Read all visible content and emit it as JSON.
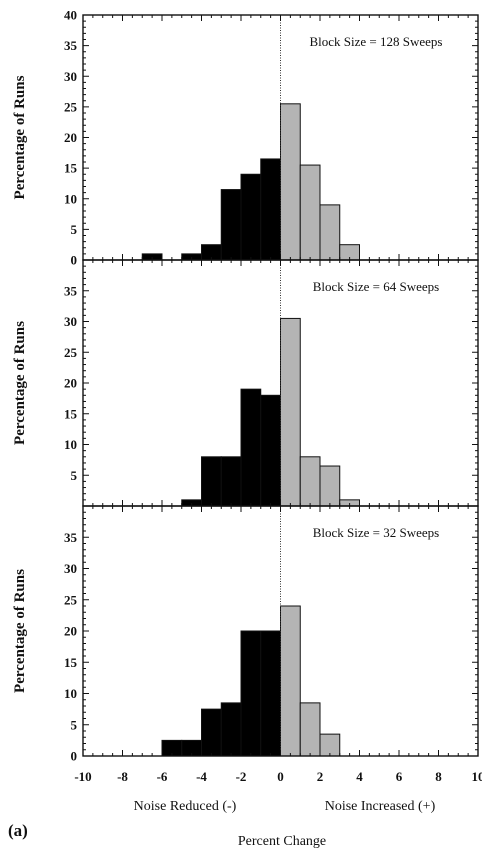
{
  "chart_data": [
    {
      "type": "bar",
      "annotation": "Block Size = 128 Sweeps",
      "ylabel": "Percentage of Runs",
      "xlim": [
        -10,
        10
      ],
      "ylim": [
        0,
        40
      ],
      "yticks": [
        0,
        5,
        10,
        15,
        20,
        25,
        30,
        35,
        40
      ],
      "bins": [
        {
          "x0": -7,
          "x1": -6,
          "value": 1,
          "side": "reduced"
        },
        {
          "x0": -5,
          "x1": -4,
          "value": 1,
          "side": "reduced"
        },
        {
          "x0": -4,
          "x1": -3,
          "value": 2.5,
          "side": "reduced"
        },
        {
          "x0": -3,
          "x1": -2,
          "value": 11.5,
          "side": "reduced"
        },
        {
          "x0": -2,
          "x1": -1,
          "value": 14,
          "side": "reduced"
        },
        {
          "x0": -1,
          "x1": 0,
          "value": 16.5,
          "side": "reduced"
        },
        {
          "x0": 0,
          "x1": 1,
          "value": 25.5,
          "side": "increased"
        },
        {
          "x0": 1,
          "x1": 2,
          "value": 15.5,
          "side": "increased"
        },
        {
          "x0": 2,
          "x1": 3,
          "value": 9,
          "side": "increased"
        },
        {
          "x0": 3,
          "x1": 4,
          "value": 2.5,
          "side": "increased"
        }
      ]
    },
    {
      "type": "bar",
      "annotation": "Block Size = 64 Sweeps",
      "ylabel": "Percentage of Runs",
      "xlim": [
        -10,
        10
      ],
      "ylim": [
        0,
        40
      ],
      "yticks": [
        5,
        10,
        15,
        20,
        25,
        30,
        35
      ],
      "bins": [
        {
          "x0": -5,
          "x1": -4,
          "value": 1,
          "side": "reduced"
        },
        {
          "x0": -4,
          "x1": -3,
          "value": 8,
          "side": "reduced"
        },
        {
          "x0": -3,
          "x1": -2,
          "value": 8,
          "side": "reduced"
        },
        {
          "x0": -2,
          "x1": -1,
          "value": 19,
          "side": "reduced"
        },
        {
          "x0": -1,
          "x1": 0,
          "value": 18,
          "side": "reduced"
        },
        {
          "x0": 0,
          "x1": 1,
          "value": 30.5,
          "side": "increased"
        },
        {
          "x0": 1,
          "x1": 2,
          "value": 8,
          "side": "increased"
        },
        {
          "x0": 2,
          "x1": 3,
          "value": 6.5,
          "side": "increased"
        },
        {
          "x0": 3,
          "x1": 4,
          "value": 1,
          "side": "increased"
        }
      ]
    },
    {
      "type": "bar",
      "annotation": "Block Size = 32 Sweeps",
      "ylabel": "Percentage of Runs",
      "xlabel": "Percent Change",
      "xlim": [
        -10,
        10
      ],
      "ylim": [
        0,
        40
      ],
      "yticks": [
        0,
        5,
        10,
        15,
        20,
        25,
        30,
        35
      ],
      "xticks": [
        -10,
        -8,
        -6,
        -4,
        -2,
        0,
        2,
        4,
        6,
        8,
        10
      ],
      "bins": [
        {
          "x0": -6,
          "x1": -5,
          "value": 2.5,
          "side": "reduced"
        },
        {
          "x0": -5,
          "x1": -4,
          "value": 2.5,
          "side": "reduced"
        },
        {
          "x0": -4,
          "x1": -3,
          "value": 7.5,
          "side": "reduced"
        },
        {
          "x0": -3,
          "x1": -2,
          "value": 8.5,
          "side": "reduced"
        },
        {
          "x0": -2,
          "x1": -1,
          "value": 20,
          "side": "reduced"
        },
        {
          "x0": -1,
          "x1": 0,
          "value": 20,
          "side": "reduced"
        },
        {
          "x0": 0,
          "x1": 1,
          "value": 24,
          "side": "increased"
        },
        {
          "x0": 1,
          "x1": 2,
          "value": 8.5,
          "side": "increased"
        },
        {
          "x0": 2,
          "x1": 3,
          "value": 3.5,
          "side": "increased"
        }
      ]
    }
  ],
  "footer": {
    "left_label": "Noise Reduced (-)",
    "right_label": "Noise Increased (+)",
    "panel_letter": "(a)"
  },
  "colors": {
    "reduced": "#000000",
    "increased": "#b4b4b4",
    "axis": "#111111"
  }
}
